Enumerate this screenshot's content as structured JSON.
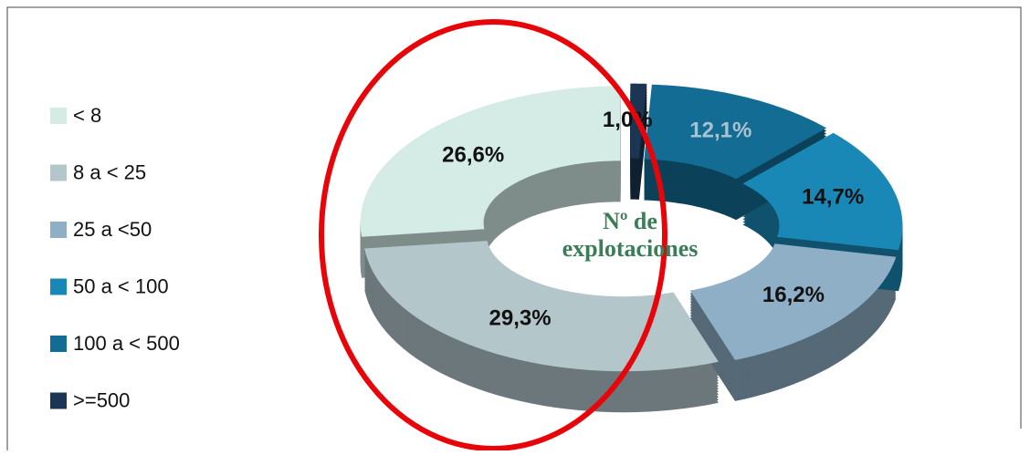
{
  "chart_data": {
    "type": "pie",
    "title": "Nº de explotaciones",
    "categories": [
      "< 8",
      "8 a < 25",
      "25 a <50",
      "50 a < 100",
      "100 a < 500",
      ">=500"
    ],
    "values": [
      26.6,
      29.3,
      16.2,
      14.7,
      12.1,
      1.0
    ],
    "value_labels": [
      "26,6%",
      "29,3%",
      "16,2%",
      "14,7%",
      "12,1%",
      "1,0%"
    ],
    "colors": [
      "#d4ebe6",
      "#b3c7cb",
      "#8eafc6",
      "#1a88b6",
      "#136c94",
      "#1b3552"
    ],
    "legend": "left"
  }
}
